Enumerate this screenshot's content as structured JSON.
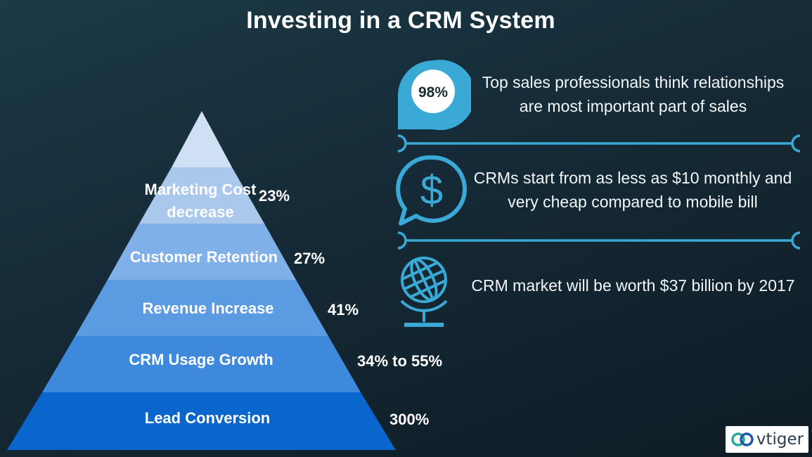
{
  "title": "Investing in a CRM System",
  "pyramid": {
    "tiers": [
      {
        "label": "",
        "value": "",
        "color": "#cfe0f5"
      },
      {
        "label": "Marketing Cost decrease",
        "value": "23%",
        "color": "#a9c8ec"
      },
      {
        "label": "Customer Retention",
        "value": "27%",
        "color": "#7fb0e8"
      },
      {
        "label": "Revenue Increase",
        "value": "41%",
        "color": "#5a9be2"
      },
      {
        "label": "CRM Usage Growth",
        "value": "34% to 55%",
        "color": "#3f89dd"
      },
      {
        "label": "Lead Conversion",
        "value": "300%",
        "color": "#0a66cd"
      }
    ]
  },
  "facts": [
    {
      "icon": "speech-bubble-98-percent-icon",
      "badge": "98%",
      "text": "Top sales professionals think relationships are most important part of sales"
    },
    {
      "icon": "dollar-speech-bubble-icon",
      "text": "CRMs start from as less as $10 monthly and very cheap compared to mobile bill"
    },
    {
      "icon": "globe-icon",
      "text": "CRM market will be worth $37 billion by 2017"
    }
  ],
  "logo": {
    "text": "vtiger",
    "icon": "vtiger-logo-icon"
  },
  "colors": {
    "accent": "#3aa9d6",
    "background": "#17303c"
  }
}
